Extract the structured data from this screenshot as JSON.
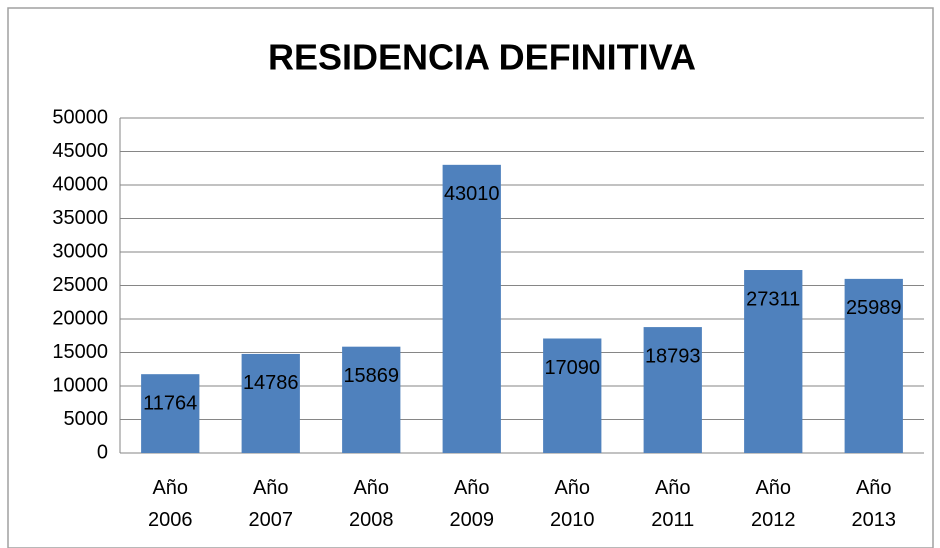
{
  "chart_data": {
    "type": "bar",
    "title": "RESIDENCIA DEFINITIVA",
    "categories": [
      "Año 2006",
      "Año 2007",
      "Año 2008",
      "Año 2009",
      "Año 2010",
      "Año 2011",
      "Año 2012",
      "Año 2013"
    ],
    "values": [
      11764,
      14786,
      15869,
      43010,
      17090,
      18793,
      27311,
      25989
    ],
    "color": "#4f81bd",
    "ylim": [
      0,
      50000
    ],
    "yticks": [
      0,
      5000,
      10000,
      15000,
      20000,
      25000,
      30000,
      35000,
      40000,
      45000,
      50000
    ],
    "grid": true
  }
}
